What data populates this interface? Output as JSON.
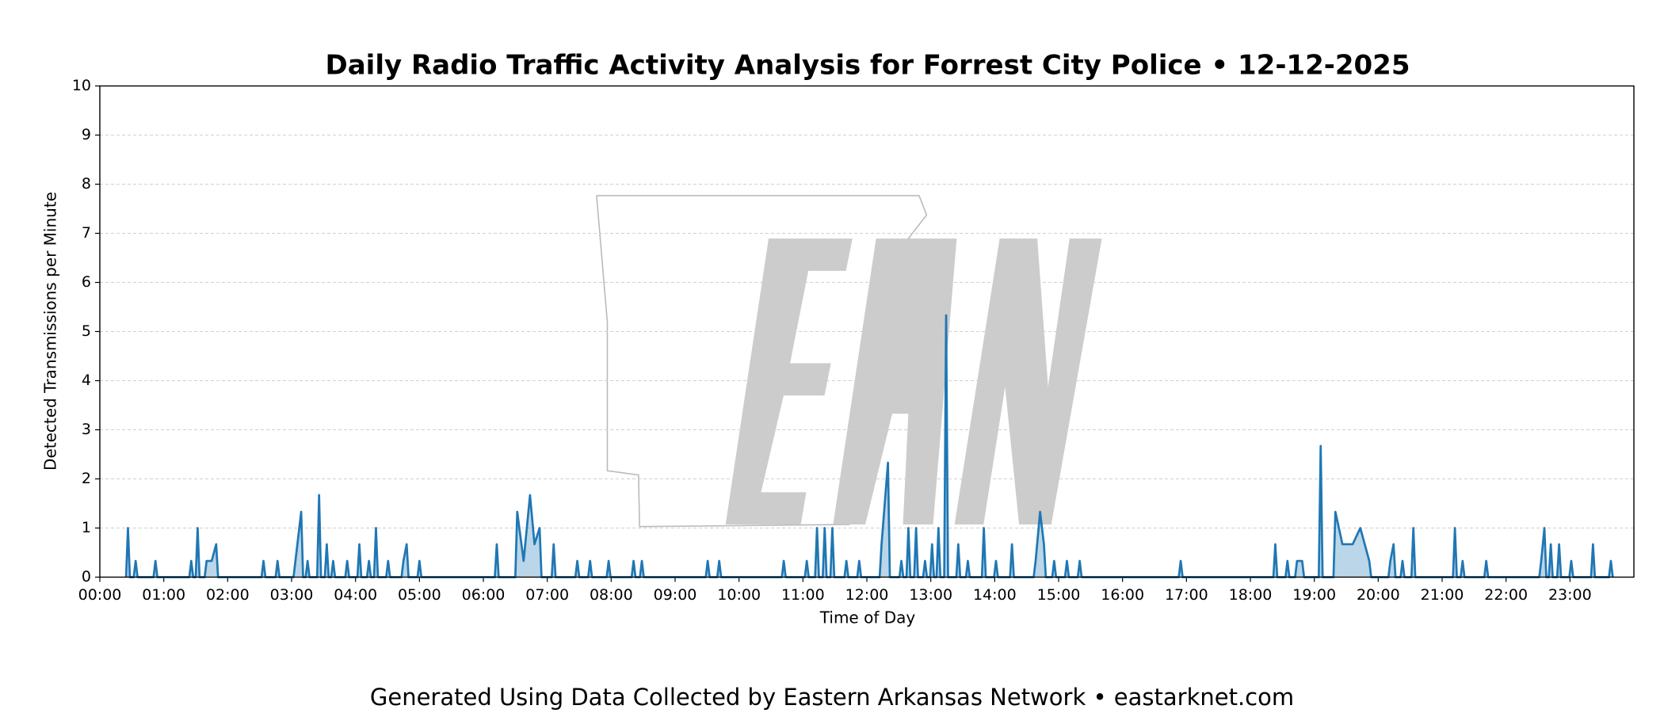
{
  "chart_data": {
    "type": "line",
    "title": "Daily Radio Traffic Activity Analysis for Forrest City Police • 12-12-2025",
    "xlabel": "Time of Day",
    "ylabel": "Detected Transmissions per Minute",
    "footer": "Generated Using Data Collected by Eastern Arkansas Network • eastarknet.com",
    "xlim": [
      0,
      24
    ],
    "ylim": [
      0,
      10
    ],
    "xticks": [
      {
        "value": 0,
        "label": "00:00"
      },
      {
        "value": 1,
        "label": "01:00"
      },
      {
        "value": 2,
        "label": "02:00"
      },
      {
        "value": 3,
        "label": "03:00"
      },
      {
        "value": 4,
        "label": "04:00"
      },
      {
        "value": 5,
        "label": "05:00"
      },
      {
        "value": 6,
        "label": "06:00"
      },
      {
        "value": 7,
        "label": "07:00"
      },
      {
        "value": 8,
        "label": "08:00"
      },
      {
        "value": 9,
        "label": "09:00"
      },
      {
        "value": 10,
        "label": "10:00"
      },
      {
        "value": 11,
        "label": "11:00"
      },
      {
        "value": 12,
        "label": "12:00"
      },
      {
        "value": 13,
        "label": "13:00"
      },
      {
        "value": 14,
        "label": "14:00"
      },
      {
        "value": 15,
        "label": "15:00"
      },
      {
        "value": 16,
        "label": "16:00"
      },
      {
        "value": 17,
        "label": "17:00"
      },
      {
        "value": 18,
        "label": "18:00"
      },
      {
        "value": 19,
        "label": "19:00"
      },
      {
        "value": 20,
        "label": "20:00"
      },
      {
        "value": 21,
        "label": "21:00"
      },
      {
        "value": 22,
        "label": "22:00"
      },
      {
        "value": 23,
        "label": "23:00"
      }
    ],
    "yticks": [
      0,
      1,
      2,
      3,
      4,
      5,
      6,
      7,
      8,
      9,
      10
    ],
    "grid": true,
    "color": "#1f77b4",
    "x": [
      0.41,
      0.44,
      0.47,
      0.53,
      0.56,
      0.59,
      0.84,
      0.87,
      0.9,
      1.4,
      1.43,
      1.46,
      1.5,
      1.53,
      1.56,
      1.64,
      1.67,
      1.75,
      1.82,
      1.85,
      2.53,
      2.56,
      2.59,
      2.75,
      2.78,
      2.81,
      3.03,
      3.06,
      3.15,
      3.18,
      3.22,
      3.25,
      3.28,
      3.4,
      3.43,
      3.46,
      3.52,
      3.55,
      3.58,
      3.62,
      3.65,
      3.68,
      3.84,
      3.87,
      3.9,
      4.03,
      4.06,
      4.09,
      4.18,
      4.21,
      4.24,
      4.29,
      4.32,
      4.35,
      4.48,
      4.51,
      4.54,
      4.72,
      4.75,
      4.8,
      4.83,
      4.97,
      5,
      5.03,
      6.18,
      6.21,
      6.24,
      6.5,
      6.53,
      6.63,
      6.73,
      6.8,
      6.88,
      6.91,
      7.07,
      7.1,
      7.13,
      7.44,
      7.47,
      7.5,
      7.64,
      7.67,
      7.7,
      7.93,
      7.96,
      7.99,
      8.32,
      8.35,
      8.38,
      8.45,
      8.48,
      8.51,
      9.48,
      9.51,
      9.54,
      9.66,
      9.69,
      9.72,
      10.67,
      10.7,
      10.73,
      11.03,
      11.06,
      11.09,
      11.19,
      11.22,
      11.25,
      11.31,
      11.34,
      11.37,
      11.43,
      11.46,
      11.49,
      11.65,
      11.68,
      11.71,
      11.85,
      11.88,
      11.91,
      12.2,
      12.23,
      12.33,
      12.36,
      12.51,
      12.54,
      12.57,
      12.62,
      12.65,
      12.68,
      12.74,
      12.77,
      12.8,
      12.88,
      12.91,
      12.94,
      12.99,
      13.02,
      13.05,
      13.09,
      13.12,
      13.15,
      13.21,
      13.24,
      13.27,
      13.4,
      13.43,
      13.46,
      13.55,
      13.58,
      13.61,
      13.8,
      13.83,
      13.86,
      13.99,
      14.02,
      14.05,
      14.24,
      14.27,
      14.3,
      14.61,
      14.64,
      14.71,
      14.77,
      14.8,
      14.9,
      14.93,
      14.96,
      15.1,
      15.13,
      15.16,
      15.3,
      15.33,
      15.36,
      16.88,
      16.91,
      16.94,
      18.36,
      18.39,
      18.42,
      18.55,
      18.58,
      18.61,
      18.7,
      18.73,
      18.81,
      18.84,
      19.07,
      19.1,
      19.13,
      19.3,
      19.33,
      19.44,
      19.6,
      19.72,
      19.86,
      19.89,
      20.16,
      20.19,
      20.24,
      20.27,
      20.35,
      20.38,
      20.41,
      20.52,
      20.55,
      20.58,
      21.17,
      21.2,
      21.23,
      21.29,
      21.32,
      21.35,
      21.66,
      21.69,
      21.72,
      22.52,
      22.55,
      22.6,
      22.63,
      22.67,
      22.7,
      22.73,
      22.8,
      22.83,
      22.86,
      22.99,
      23.02,
      23.05,
      23.33,
      23.36,
      23.39,
      23.61,
      23.64,
      23.67
    ],
    "values": [
      0,
      1,
      0,
      0,
      0.33,
      0,
      0,
      0.33,
      0,
      0,
      0.33,
      0,
      0,
      1,
      0,
      0,
      0.33,
      0.33,
      0.67,
      0,
      0,
      0.33,
      0,
      0,
      0.33,
      0,
      0,
      0.33,
      1.33,
      0,
      0,
      0.33,
      0,
      0,
      1.67,
      0,
      0,
      0.67,
      0,
      0,
      0.33,
      0,
      0,
      0.33,
      0,
      0,
      0.67,
      0,
      0,
      0.33,
      0,
      0,
      1,
      0,
      0,
      0.33,
      0,
      0,
      0.33,
      0.67,
      0,
      0,
      0.33,
      0,
      0,
      0.67,
      0,
      0,
      1.33,
      0.33,
      1.67,
      0.67,
      1,
      0,
      0,
      0.67,
      0,
      0,
      0.33,
      0,
      0,
      0.33,
      0,
      0,
      0.33,
      0,
      0,
      0.33,
      0,
      0,
      0.33,
      0,
      0,
      0.33,
      0,
      0,
      0.33,
      0,
      0,
      0.33,
      0,
      0,
      0.33,
      0,
      0,
      1,
      0,
      0,
      1,
      0,
      0,
      1,
      0,
      0,
      0.33,
      0,
      0,
      0.33,
      0,
      0,
      0.67,
      2.33,
      0,
      0,
      0.33,
      0,
      0,
      1,
      0,
      0,
      1,
      0,
      0,
      0.33,
      0,
      0,
      0.67,
      0,
      0,
      1,
      0,
      0,
      5.33,
      0,
      0,
      0.67,
      0,
      0,
      0.33,
      0,
      0,
      1,
      0,
      0,
      0.33,
      0,
      0,
      0.67,
      0,
      0,
      0.33,
      1.33,
      0.67,
      0,
      0,
      0.33,
      0,
      0,
      0.33,
      0,
      0,
      0.33,
      0,
      0,
      0.33,
      0,
      0,
      0.67,
      0,
      0,
      0.33,
      0,
      0,
      0.33,
      0.33,
      0,
      0,
      2.67,
      0,
      0,
      1.33,
      0.67,
      0.67,
      1,
      0.33,
      0,
      0,
      0.33,
      0.67,
      0,
      0,
      0.33,
      0,
      0,
      1,
      0,
      0,
      1,
      0,
      0,
      0.33,
      0,
      0,
      0.33,
      0,
      0,
      0.33,
      1,
      0,
      0,
      0.67,
      0,
      0,
      0.67,
      0,
      0,
      0.33,
      0,
      0,
      0.67,
      0,
      0,
      0.33,
      0
    ]
  }
}
